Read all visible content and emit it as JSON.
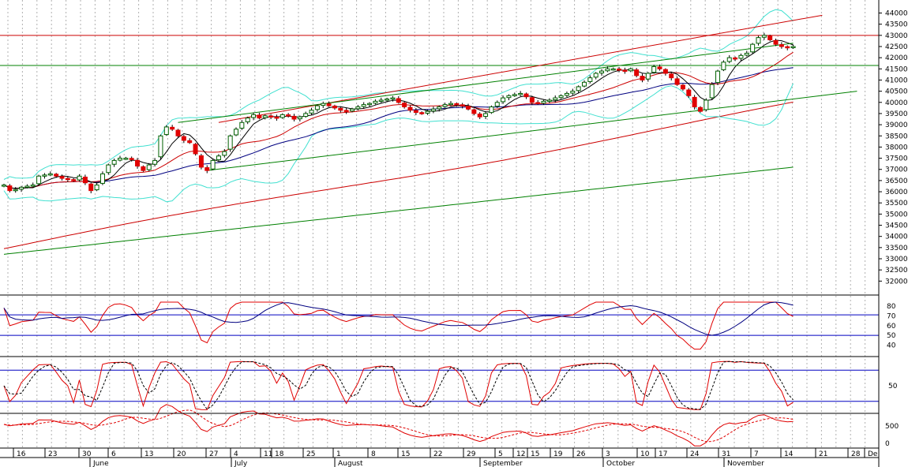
{
  "chart_data": {
    "type": "candlestick",
    "price_axis": {
      "ylim": [
        31800,
        44300
      ],
      "ticks": [
        44000,
        43500,
        43000,
        42500,
        42000,
        41500,
        41000,
        40500,
        40000,
        39500,
        39000,
        38500,
        38000,
        37500,
        37000,
        36500,
        36000,
        35500,
        35000,
        34500,
        34000,
        33500,
        33000,
        32500,
        32000
      ]
    },
    "rsi_axis": {
      "ticks": [
        80,
        70,
        60,
        50,
        40
      ],
      "ylim": [
        30,
        88
      ],
      "levels": [
        71,
        50
      ]
    },
    "stoch_axis": {
      "ticks": [
        50
      ],
      "levels": [
        80,
        20
      ]
    },
    "vol_axis": {
      "ticks": [
        500,
        0
      ]
    },
    "date_ticks": [
      "16",
      "23",
      "30",
      "6",
      "13",
      "20",
      "27",
      "4",
      "11",
      "18",
      "25",
      "1",
      "8",
      "15",
      "22",
      "29",
      "5",
      "12",
      "15",
      "19",
      "26",
      "3",
      "10",
      "17",
      "24",
      "31",
      "7",
      "14",
      "21",
      "28",
      "De"
    ],
    "month_labels": [
      "June",
      "July",
      "August",
      "September",
      "October",
      "November"
    ],
    "horizontal_lines": [
      {
        "value": 43000,
        "color": "#cc0000"
      },
      {
        "value": 41650,
        "color": "#008000"
      }
    ],
    "trend_lines": [
      {
        "from": [
          37,
          39100
        ],
        "to": [
          141,
          43900
        ],
        "color": "#cc0000"
      },
      {
        "from": [
          30,
          39100
        ],
        "to": [
          136,
          42650
        ],
        "color": "#008000"
      },
      {
        "from": [
          35,
          36950
        ],
        "to": [
          147,
          40500
        ],
        "color": "#008000"
      }
    ],
    "close": [
      36300,
      36050,
      36100,
      36200,
      36250,
      36300,
      36700,
      36750,
      36800,
      36700,
      36600,
      36550,
      36500,
      36700,
      36400,
      36050,
      36300,
      36800,
      37200,
      37400,
      37500,
      37500,
      37450,
      37150,
      36950,
      37200,
      37400,
      38500,
      38900,
      38800,
      38500,
      38300,
      38200,
      37700,
      37100,
      36950,
      37400,
      37600,
      37800,
      38500,
      38800,
      39100,
      39300,
      39450,
      39300,
      39400,
      39350,
      39300,
      39450,
      39400,
      39250,
      39350,
      39500,
      39650,
      39850,
      39950,
      39850,
      39750,
      39650,
      39600,
      39700,
      39800,
      39900,
      39950,
      40050,
      40100,
      40150,
      40200,
      40000,
      39800,
      39650,
      39550,
      39500,
      39600,
      39700,
      39800,
      39900,
      39950,
      39900,
      39850,
      39700,
      39500,
      39350,
      39500,
      39800,
      40000,
      40200,
      40300,
      40350,
      40400,
      40250,
      40000,
      39950,
      40050,
      40100,
      40200,
      40300,
      40400,
      40500,
      40700,
      40900,
      41100,
      41300,
      41400,
      41500,
      41500,
      41450,
      41400,
      41500,
      41200,
      41000,
      41300,
      41600,
      41500,
      41300,
      41100,
      40800,
      40600,
      40300,
      39800,
      39600,
      40100,
      40800,
      41400,
      41800,
      42000,
      41950,
      42100,
      42200,
      42600,
      42900,
      43000,
      42800,
      42600,
      42500,
      42450,
      42500
    ]
  },
  "indicators": {
    "ma_colors": {
      "sma20": "#cc0000",
      "sma50": "#000080",
      "sma200": "#cc0000",
      "sma400": "#008000",
      "bands": "#40e0d0"
    }
  }
}
